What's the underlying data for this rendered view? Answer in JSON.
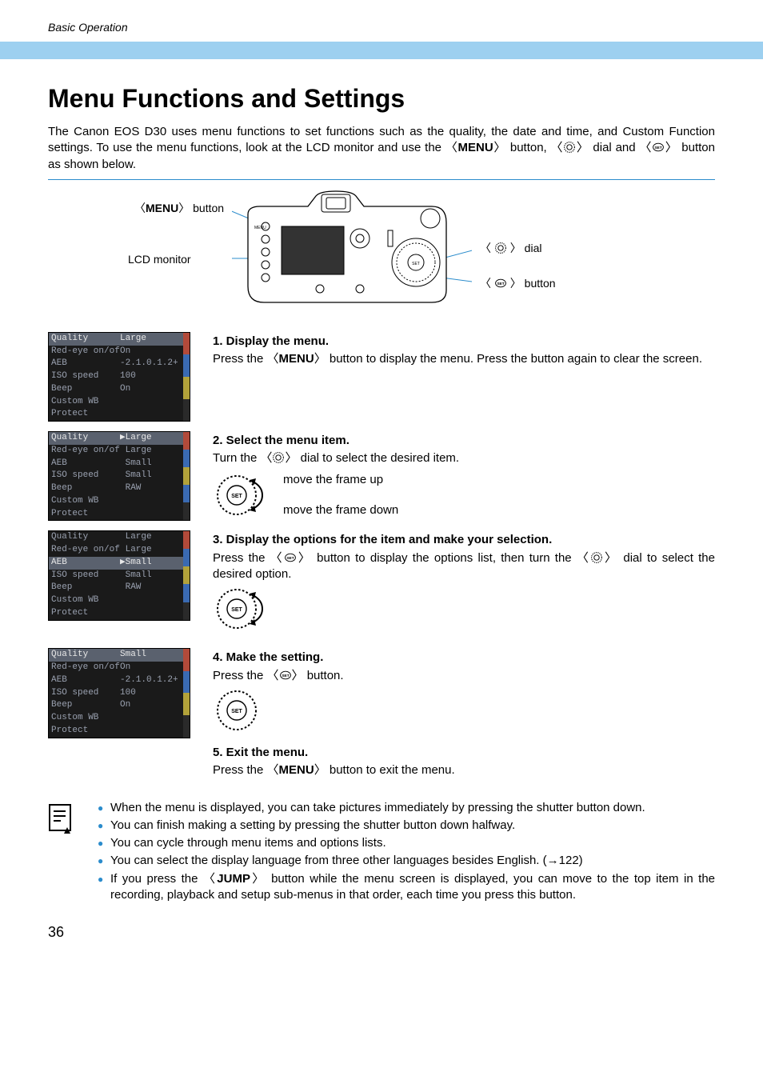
{
  "header": {
    "section": "Basic Operation"
  },
  "title": "Menu Functions and Settings",
  "intro_parts": [
    "The Canon EOS D30 uses menu functions to set functions such as the quality, the date and time, and Custom Function settings. To use the menu functions, look at the LCD monitor and use the 〈",
    "MENU",
    "〉 button, 〈",
    "〉 dial and 〈",
    "〉 button as shown below."
  ],
  "callouts": {
    "menu_button": "〈MENU〉 button",
    "lcd_monitor": "LCD monitor",
    "dial": "〉 dial",
    "set_button": "〉 button",
    "angle_open": "〈 "
  },
  "lcd_screens": {
    "rows_base": [
      {
        "l": "Quality",
        "r": "Large"
      },
      {
        "l": "Red-eye on/off",
        "r": "On"
      },
      {
        "l": "AEB",
        "r": "-2.1.0.1.2+"
      },
      {
        "l": "ISO speed",
        "r": "100"
      },
      {
        "l": "Beep",
        "r": "On"
      },
      {
        "l": "Custom WB",
        "r": ""
      },
      {
        "l": "Protect",
        "r": ""
      }
    ],
    "s1_hi_index": 0,
    "s2_rows": [
      {
        "l": "Quality",
        "r": "▶Large"
      },
      {
        "l": "Red-eye on/off",
        "r": " Large"
      },
      {
        "l": "AEB",
        "r": " Small"
      },
      {
        "l": "ISO speed",
        "r": " Small"
      },
      {
        "l": "Beep",
        "r": " RAW"
      },
      {
        "l": "Custom WB",
        "r": ""
      },
      {
        "l": "Protect",
        "r": ""
      }
    ],
    "s2_hi_index": 0,
    "s3_rows": [
      {
        "l": "Quality",
        "r": " Large"
      },
      {
        "l": "Red-eye on/off",
        "r": " Large"
      },
      {
        "l": "AEB",
        "r": "▶Small"
      },
      {
        "l": "ISO speed",
        "r": " Small"
      },
      {
        "l": "Beep",
        "r": " RAW"
      },
      {
        "l": "Custom WB",
        "r": ""
      },
      {
        "l": "Protect",
        "r": ""
      }
    ],
    "s3_hi_index": 2,
    "s4_rows": [
      {
        "l": "Quality",
        "r": "Small"
      },
      {
        "l": "Red-eye on/off",
        "r": "On"
      },
      {
        "l": "AEB",
        "r": "-2.1.0.1.2+"
      },
      {
        "l": "ISO speed",
        "r": "100"
      },
      {
        "l": "Beep",
        "r": "On"
      },
      {
        "l": "Custom WB",
        "r": ""
      },
      {
        "l": "Protect",
        "r": ""
      }
    ],
    "s4_hi_index": 0,
    "tab_colors": [
      "#b24a3a",
      "#3a6ab2",
      "#b2a23a",
      "#2a2a2a"
    ],
    "opt_tab_colors": [
      "#b24a3a",
      "#3a6ab2",
      "#b2a23a",
      "#3a6ab2",
      "#2a2a2a"
    ]
  },
  "steps": {
    "s1": {
      "title": "1. Display the menu.",
      "body_parts": [
        "Press the 〈",
        "MENU",
        "〉 button to display the menu. Press the button again to clear the screen."
      ]
    },
    "s2": {
      "title": "2. Select the menu item.",
      "body_parts": [
        "Turn the 〈",
        "〉 dial to select the desired item."
      ],
      "move_up": "move the frame up",
      "move_down": "move the frame down"
    },
    "s3": {
      "title": "3. Display the options for the item and make your selection.",
      "body_parts": [
        "Press the 〈",
        "〉 button to display the options list, then turn the 〈",
        "〉 dial to select the desired option."
      ]
    },
    "s4": {
      "title": "4. Make the setting.",
      "body_parts": [
        "Press the 〈",
        "〉 button."
      ]
    },
    "s5": {
      "title": "5. Exit the menu.",
      "body_parts": [
        "Press the 〈",
        "MENU",
        "〉 button to exit the menu."
      ]
    }
  },
  "notes": [
    "When the menu is displayed, you can take pictures immediately by pressing the shutter button down.",
    "You can finish making a setting by pressing the shutter button down halfway.",
    "You can cycle through menu items and options lists.",
    "You can select the display language from three other languages besides English. (→122)",
    "If you press the 〈JUMP〉 button while the menu screen is displayed, you can move to the top item in the recording, playback and setup sub-menus in that order, each time you press this button."
  ],
  "page_number": "36",
  "colors": {
    "blue_bar": "#9dd0f0",
    "rule": "#2b8ccc",
    "bullet": "#2b8ccc",
    "lcd_bg": "#1a1a1a",
    "lcd_fg": "#9aa1b0",
    "lcd_hi_bg": "#5a616e"
  }
}
